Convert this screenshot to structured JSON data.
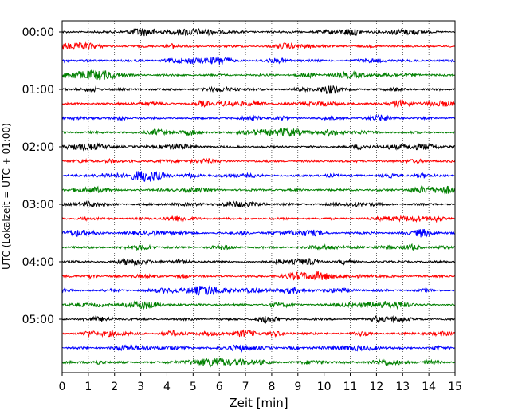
{
  "chart_data": {
    "type": "line",
    "title": "",
    "xlabel": "Zeit  [min]",
    "ylabel": "UTC (Lokalzeit = UTC + 01:00)",
    "xlim": [
      0,
      15
    ],
    "xticks": [
      0,
      1,
      2,
      3,
      4,
      5,
      6,
      7,
      8,
      9,
      10,
      11,
      12,
      13,
      14,
      15
    ],
    "yticks": [
      "00:00",
      "01:00",
      "02:00",
      "03:00",
      "04:00",
      "05:00"
    ],
    "grid": "vertical dotted",
    "trace_count": 24,
    "trace_interval_min": 15,
    "colors": [
      "#000000",
      "#ff0000",
      "#0000ff",
      "#008000"
    ]
  }
}
